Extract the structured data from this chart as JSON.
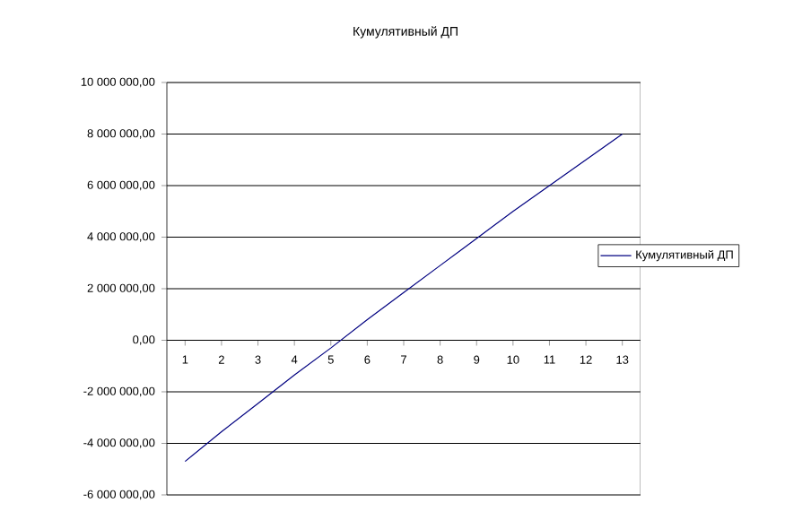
{
  "chart_data": {
    "type": "line",
    "title": "Кумулятивный ДП",
    "categories": [
      "1",
      "2",
      "3",
      "4",
      "5",
      "6",
      "7",
      "8",
      "9",
      "10",
      "11",
      "12",
      "13"
    ],
    "series": [
      {
        "name": "Кумулятивный ДП",
        "color": "#000080",
        "values": [
          -4700000,
          -3550000,
          -2450000,
          -1350000,
          -300000,
          800000,
          1850000,
          2900000,
          3950000,
          5000000,
          6000000,
          7000000,
          8000000
        ]
      }
    ],
    "ylim": [
      -6000000,
      10000000
    ],
    "yticks": [
      {
        "value": -6000000,
        "label": "-6 000 000,00"
      },
      {
        "value": -4000000,
        "label": "-4 000 000,00"
      },
      {
        "value": -2000000,
        "label": "-2 000 000,00"
      },
      {
        "value": 0,
        "label": "0,00"
      },
      {
        "value": 2000000,
        "label": "2 000 000,00"
      },
      {
        "value": 4000000,
        "label": "4 000 000,00"
      },
      {
        "value": 6000000,
        "label": "6 000 000,00"
      },
      {
        "value": 8000000,
        "label": "8 000 000,00"
      },
      {
        "value": 10000000,
        "label": "10 000 000,00"
      }
    ],
    "grid": "y",
    "legend": "right",
    "marker": "none",
    "line_style": "solid"
  }
}
